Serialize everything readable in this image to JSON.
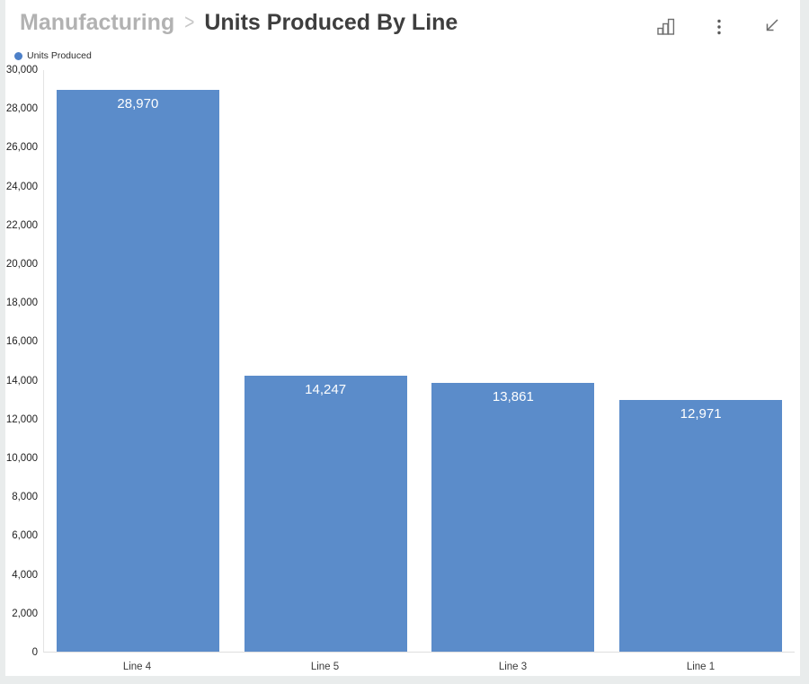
{
  "window": {
    "background_color": "#e9ecec",
    "card_color": "#ffffff"
  },
  "header": {
    "breadcrumb_parent": "Manufacturing",
    "separator": ">",
    "title": "Units Produced By Line",
    "toolbar_icons": [
      "bar-chart-icon",
      "kebab-menu-icon",
      "collapse-arrow-icon"
    ]
  },
  "legend": {
    "items": [
      {
        "label": "Units Produced",
        "color": "#4d80c8"
      }
    ]
  },
  "chart_data": {
    "type": "bar",
    "title": "Units Produced By Line",
    "categories": [
      "Line 4",
      "Line 5",
      "Line 3",
      "Line 1"
    ],
    "series": [
      {
        "name": "Units Produced",
        "values": [
          28970,
          14247,
          13861,
          12971
        ]
      }
    ],
    "value_labels": [
      "28,970",
      "14,247",
      "13,861",
      "12,971"
    ],
    "xlabel": "",
    "ylabel": "",
    "ylim": [
      0,
      30000
    ],
    "ytick_interval": 2000,
    "yticks": [
      "30,000",
      "28,000",
      "26,000",
      "24,000",
      "22,000",
      "20,000",
      "18,000",
      "16,000",
      "14,000",
      "12,000",
      "10,000",
      "8,000",
      "6,000",
      "4,000",
      "2,000",
      "0"
    ],
    "grid": false,
    "legend_position": "top-left",
    "bar_color": "#5b8cca",
    "value_label_color": "#ffffff"
  }
}
